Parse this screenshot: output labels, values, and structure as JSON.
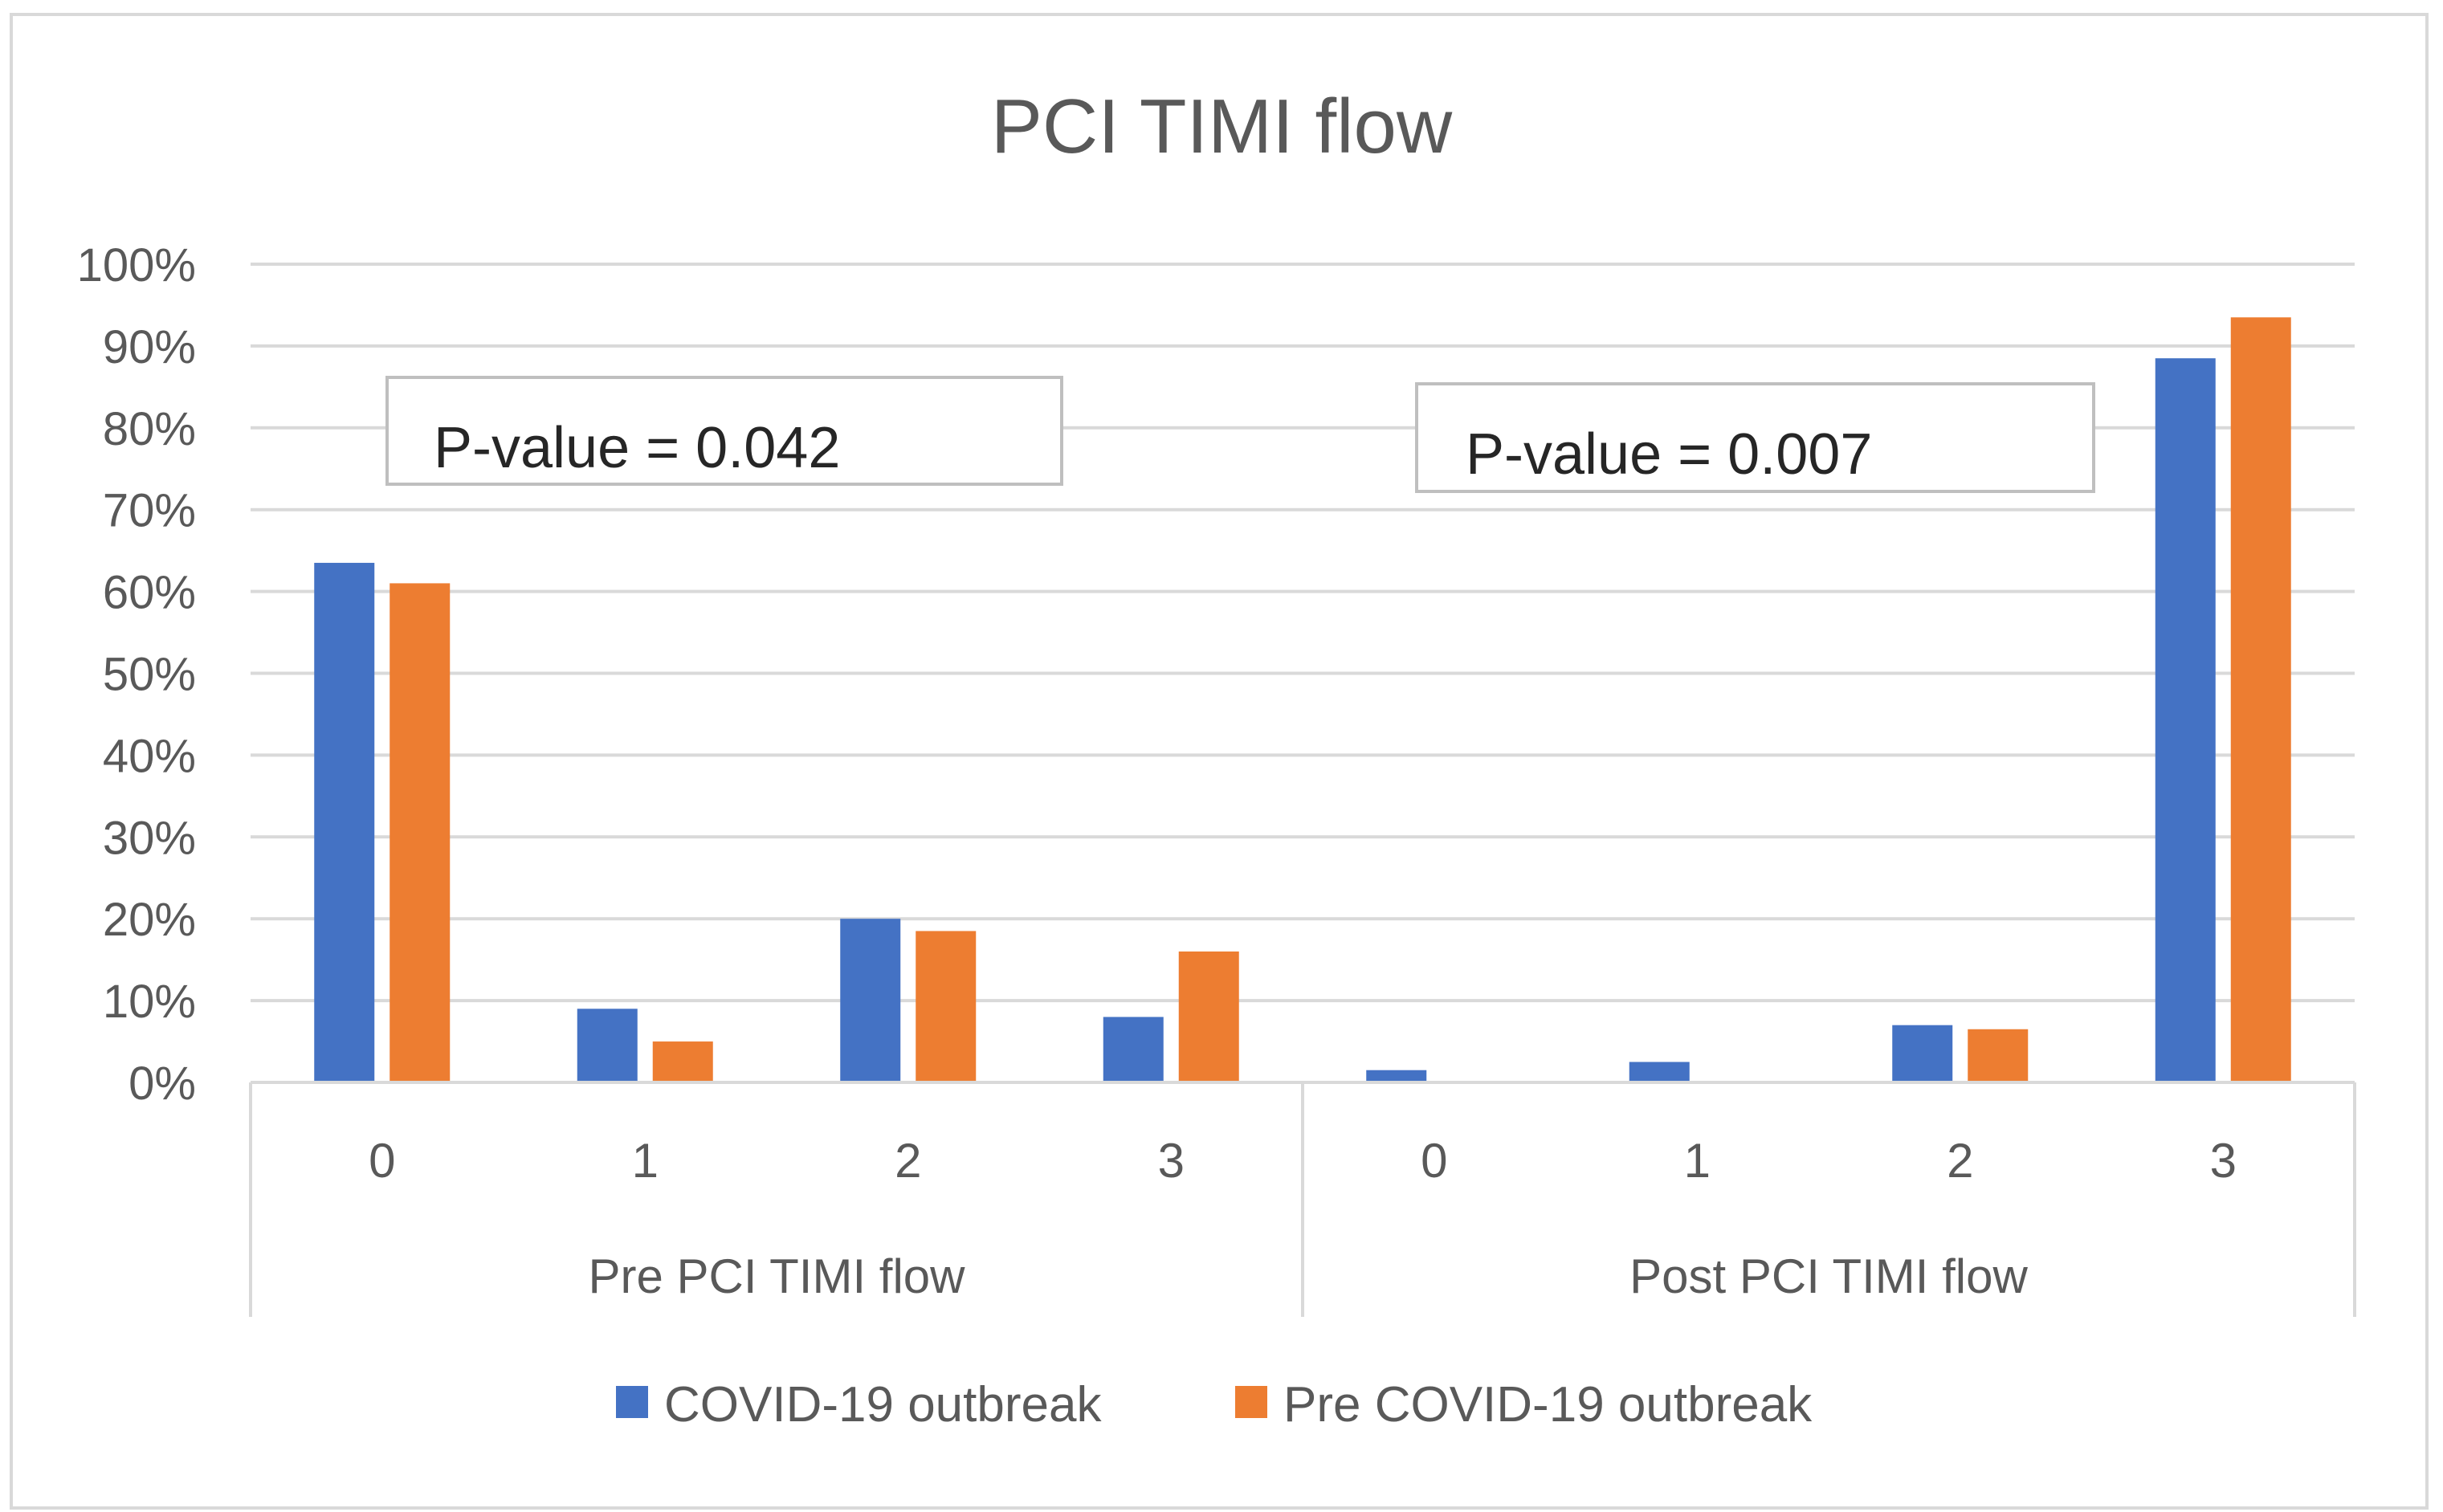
{
  "chart_data": {
    "type": "bar",
    "title": "PCI TIMI flow",
    "xlabel": "",
    "ylabel": "",
    "ylim": [
      0,
      100
    ],
    "y_ticks": [
      "0%",
      "10%",
      "20%",
      "30%",
      "40%",
      "50%",
      "60%",
      "70%",
      "80%",
      "90%",
      "100%"
    ],
    "groups": [
      {
        "label": "Pre PCI TIMI flow",
        "categories": [
          "0",
          "1",
          "2",
          "3"
        ]
      },
      {
        "label": "Post PCI TIMI flow",
        "categories": [
          "0",
          "1",
          "2",
          "3"
        ]
      }
    ],
    "series": [
      {
        "name": "COVID-19 outbreak",
        "color": "#4472C4",
        "values": [
          63.5,
          9,
          20,
          8,
          1.5,
          2.5,
          7,
          88.5
        ]
      },
      {
        "name": "Pre COVID-19 outbreak",
        "color": "#ED7D31",
        "values": [
          61,
          5,
          18.5,
          16,
          0,
          0,
          6.5,
          93.5
        ]
      }
    ],
    "annotations": [
      {
        "group": 0,
        "text": "P-value =  0.042"
      },
      {
        "group": 1,
        "text": "P-value =  0.007"
      }
    ],
    "grid": true,
    "legend_position": "bottom"
  },
  "colors": {
    "grid": "#d9d9d9",
    "axis": "#d9d9d9",
    "text": "#595959",
    "frame": "#d9d9d9"
  }
}
